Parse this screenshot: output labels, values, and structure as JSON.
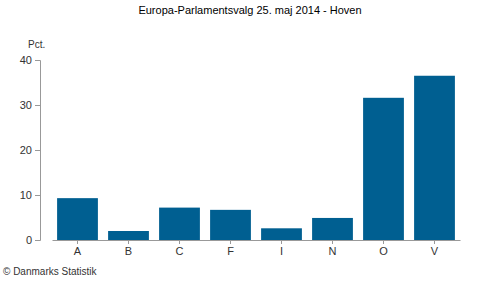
{
  "chart_data": {
    "type": "bar",
    "title": "Europa-Parlamentsvalg 25. maj 2014 - Hoven",
    "y_label": "Pct.",
    "source": "© Danmarks Statistik",
    "categories": [
      "A",
      "B",
      "C",
      "F",
      "I",
      "N",
      "O",
      "V"
    ],
    "values": [
      9.3,
      2.0,
      7.2,
      6.7,
      2.6,
      4.9,
      31.6,
      36.5
    ],
    "color": "#005f91",
    "ylim": [
      0,
      40
    ],
    "yticks": [
      0,
      10,
      20,
      30,
      40
    ],
    "grid": false
  }
}
